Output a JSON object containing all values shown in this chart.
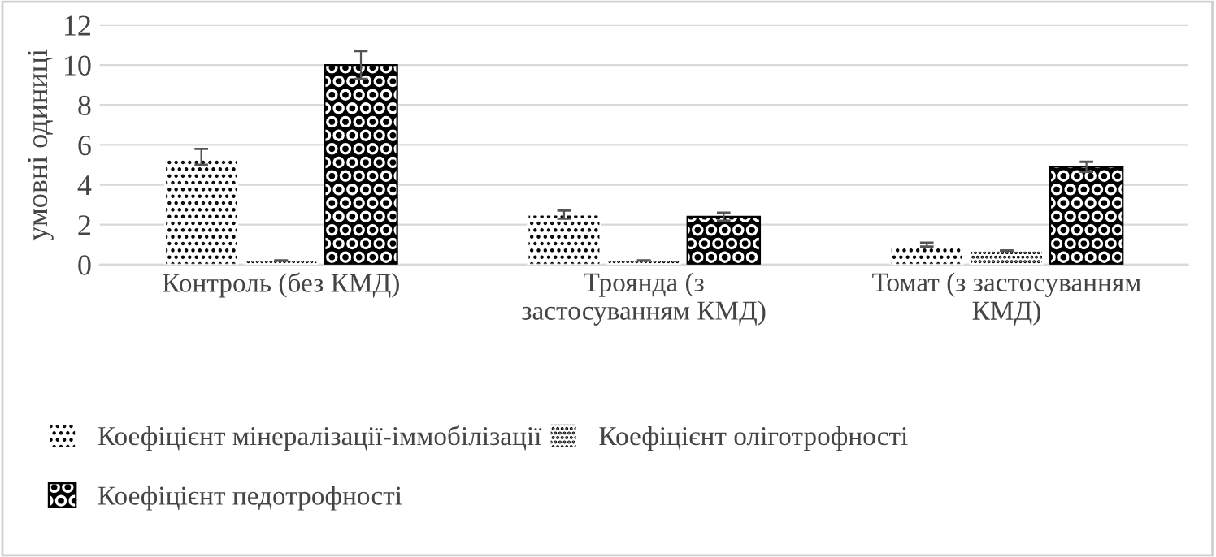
{
  "chart_data": {
    "type": "bar",
    "ylabel": "умовні одиниці",
    "categories": [
      "Контроль (без КМД)",
      "Троянда (з\nзастосуванням КМД)",
      "Томат (з застосуванням\nКМД)"
    ],
    "series": [
      {
        "name": "Коефіцієнт мінералізації-іммобілізації",
        "color": "#ffffff",
        "values": [
          5.4,
          2.5,
          1.0
        ],
        "errors": [
          0.4,
          0.2,
          0.1
        ]
      },
      {
        "name": "Коефіцієнт оліготрофності",
        "color": "#ffffff",
        "values": [
          0.2,
          0.2,
          0.7
        ],
        "errors": [
          null,
          null,
          null
        ]
      },
      {
        "name": "Коефіцієнт педотрофності",
        "color": "#000000",
        "values": [
          10.0,
          2.4,
          4.9
        ],
        "errors": [
          0.7,
          0.2,
          0.25
        ]
      }
    ],
    "ylim": [
      0,
      12
    ],
    "yticks": [
      0,
      2,
      4,
      6,
      8,
      10,
      12
    ],
    "grid": "y",
    "legend": "bottom"
  }
}
